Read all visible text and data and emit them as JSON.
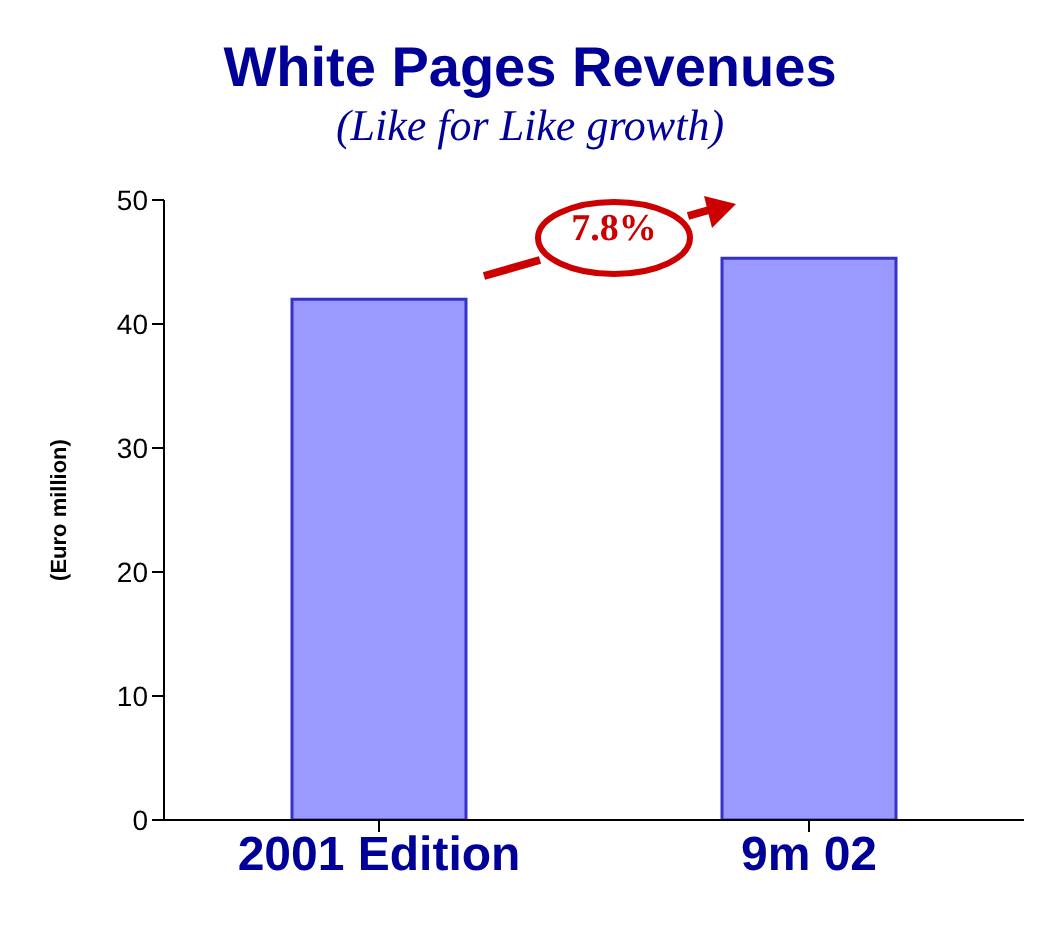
{
  "chart_data": {
    "type": "bar",
    "title": "White Pages Revenues",
    "subtitle": "(Like for Like growth)",
    "ylabel": "(Euro million)",
    "categories": [
      "2001 Edition",
      "9m 02"
    ],
    "values": [
      42,
      45.3
    ],
    "colors": [
      "#9999ff",
      "#9999ff"
    ],
    "ylim": [
      0,
      50
    ],
    "yticks": [
      0,
      10,
      20,
      30,
      40,
      50
    ],
    "annotations": [
      "7.8%"
    ]
  }
}
